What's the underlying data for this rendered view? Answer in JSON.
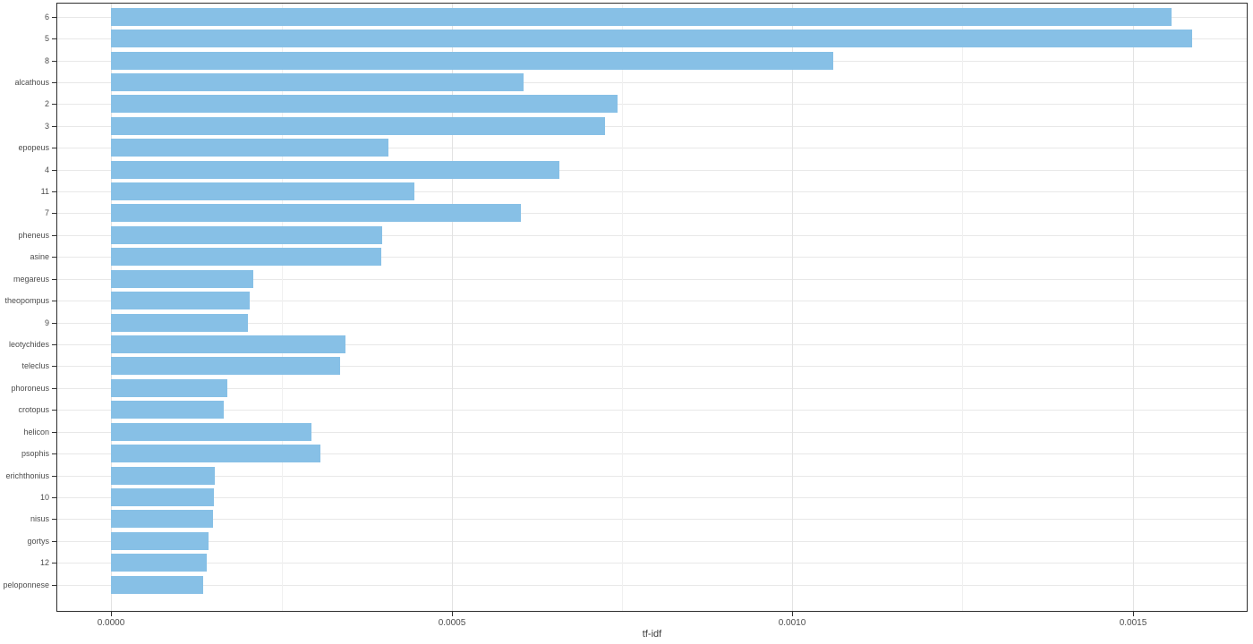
{
  "chart_data": {
    "type": "bar",
    "orientation": "horizontal",
    "title": "",
    "xlabel": "tf-idf",
    "ylabel": "",
    "legend": "none",
    "grid": "on",
    "categories": [
      "6",
      "5",
      "8",
      "alcathous",
      "2",
      "3",
      "epopeus",
      "4",
      "11",
      "7",
      "pheneus",
      "asine",
      "megareus",
      "theopompus",
      "9",
      "leotychides",
      "teleclus",
      "phoroneus",
      "crotopus",
      "helicon",
      "psophis",
      "erichthonius",
      "10",
      "nisus",
      "gortys",
      "12",
      "peloponnese"
    ],
    "values": [
      0.001557,
      0.001588,
      0.001061,
      0.000606,
      0.000744,
      0.000725,
      0.000408,
      0.000659,
      0.000445,
      0.000602,
      0.000398,
      0.000397,
      0.000209,
      0.000204,
      0.000201,
      0.000345,
      0.000337,
      0.000171,
      0.000165,
      0.000295,
      0.000307,
      0.000153,
      0.000151,
      0.00015,
      0.000143,
      0.000141,
      0.000136
    ],
    "x_ticks": [
      0,
      0.0005,
      0.001,
      0.0015
    ],
    "x_tick_labels": [
      "0.0000",
      "0.0005",
      "0.0010",
      "0.0015"
    ],
    "x_minor_ticks": [
      0.00025,
      0.00075,
      0.00125
    ],
    "x_expansion_mult": 0.05,
    "bar_width_fraction": 0.8,
    "colors": {
      "bar_fill": "#87C0E6",
      "panel_border": "#2e2e2e",
      "grid_major": "#e3e3e3",
      "grid_minor": "#f0f0f0",
      "grid_horizontal": "#e8e8e8",
      "tick_mark": "#333333",
      "axis_text": "#4d4d4d",
      "axis_title": "#3a3a3a",
      "background": "#ffffff"
    }
  }
}
